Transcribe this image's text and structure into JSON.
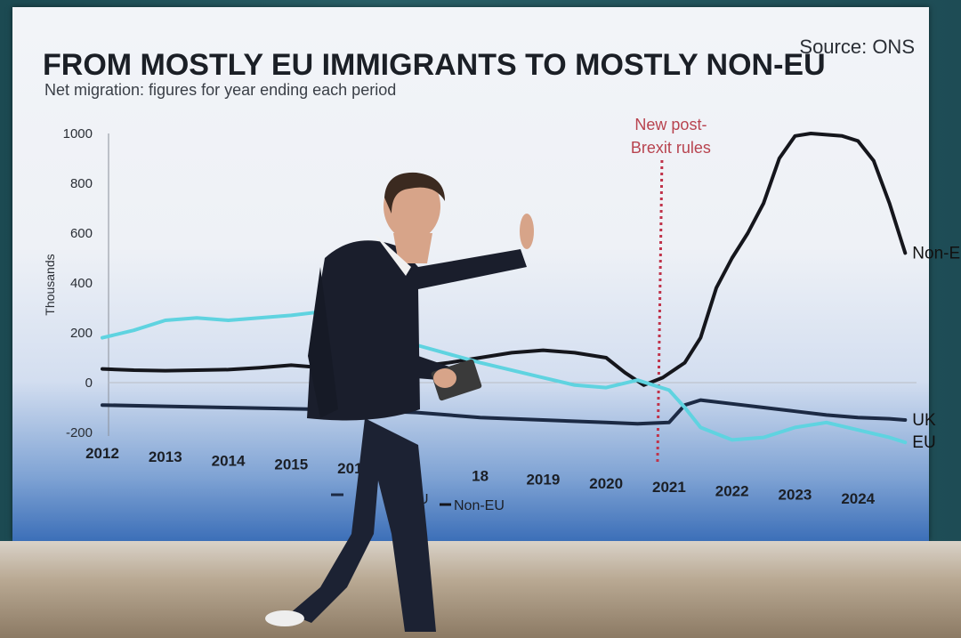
{
  "colors": {
    "non_eu": "#15161c",
    "uk": "#1c2a44",
    "eu": "#5fd3e0",
    "annotation": "#c0334a",
    "presenter_sweater": "#1a1e2c",
    "presenter_trousers": "#1c2233"
  },
  "chart_data": {
    "type": "line",
    "title": "FROM MOSTLY EU IMMIGRANTS TO MOSTLY NON-EU",
    "subtitle": "Net migration: figures for year ending each period",
    "source": "Source: ONS",
    "xlabel": "",
    "ylabel": "Thousands",
    "ylim": [
      -200,
      1000
    ],
    "yticks": [
      "1000",
      "800",
      "600",
      "400",
      "200",
      "0",
      "-200"
    ],
    "ytick_values": [
      1000,
      800,
      600,
      400,
      200,
      0,
      -200
    ],
    "xticks": [
      "2012",
      "2013",
      "2014",
      "2015",
      "2016",
      "18",
      "2019",
      "2020",
      "2021",
      "2022",
      "2023",
      "2024"
    ],
    "xtick_values": [
      2012,
      2013,
      2014,
      2015,
      2016,
      2018,
      2019,
      2020,
      2021,
      2022,
      2023,
      2024
    ],
    "xlim": [
      2012,
      2025
    ],
    "annotation": {
      "lines": [
        "New post-",
        "Brexit rules"
      ],
      "x": 2021
    },
    "series": [
      {
        "name": "Non-EU",
        "color_key": "non_eu",
        "x": [
          2012.0,
          2012.5,
          2013.0,
          2013.5,
          2014.0,
          2014.5,
          2015.0,
          2015.5,
          2016.0,
          2016.5,
          2017.0,
          2017.5,
          2018.0,
          2018.5,
          2019.0,
          2019.5,
          2020.0,
          2020.3,
          2020.6,
          2020.9,
          2021.25,
          2021.5,
          2021.75,
          2022.0,
          2022.25,
          2022.5,
          2022.75,
          2023.0,
          2023.25,
          2023.5,
          2023.75,
          2024.0,
          2024.25,
          2024.5,
          2024.75
        ],
        "values": [
          55,
          50,
          48,
          50,
          52,
          60,
          70,
          60,
          50,
          55,
          65,
          80,
          100,
          120,
          130,
          120,
          100,
          40,
          -10,
          20,
          80,
          180,
          380,
          500,
          600,
          720,
          900,
          990,
          1000,
          995,
          990,
          970,
          890,
          720,
          520
        ]
      },
      {
        "name": "UK",
        "color_key": "uk",
        "x": [
          2012.0,
          2013.0,
          2014.0,
          2015.0,
          2016.0,
          2017.0,
          2018.0,
          2019.0,
          2020.0,
          2020.5,
          2021.0,
          2021.25,
          2021.5,
          2022.0,
          2022.5,
          2023.0,
          2023.5,
          2024.0,
          2024.5,
          2024.75
        ],
        "values": [
          -90,
          -95,
          -100,
          -105,
          -110,
          -120,
          -140,
          -150,
          -160,
          -165,
          -160,
          -90,
          -70,
          -85,
          -100,
          -115,
          -130,
          -140,
          -145,
          -150
        ]
      },
      {
        "name": "EU",
        "color_key": "eu",
        "x": [
          2012.0,
          2012.5,
          2013.0,
          2013.5,
          2014.0,
          2015.0,
          2015.5,
          2016.0,
          2016.5,
          2017.0,
          2018.0,
          2019.0,
          2019.5,
          2020.0,
          2020.5,
          2021.0,
          2021.25,
          2021.5,
          2022.0,
          2022.5,
          2023.0,
          2023.5,
          2024.0,
          2024.5,
          2024.75
        ],
        "values": [
          180,
          210,
          250,
          260,
          250,
          270,
          285,
          300,
          240,
          150,
          80,
          20,
          -10,
          -20,
          10,
          -30,
          -100,
          -180,
          -230,
          -220,
          -180,
          -160,
          -190,
          -220,
          -240
        ]
      }
    ],
    "legend": {
      "position": "bottom-center",
      "visible_entries": [
        "U",
        "Non-EU"
      ]
    }
  }
}
